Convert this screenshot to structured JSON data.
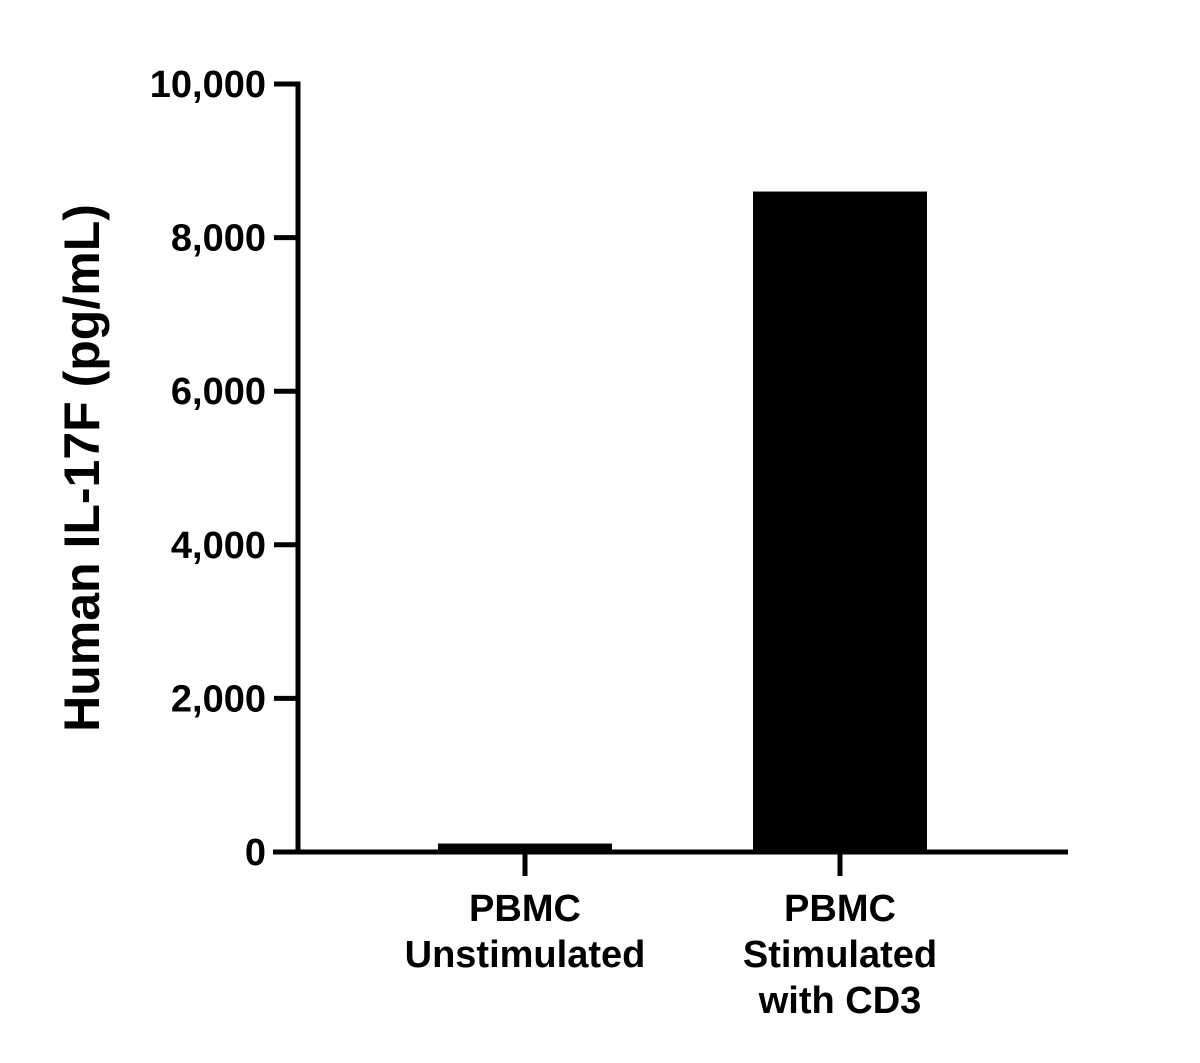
{
  "chart_data": {
    "type": "bar",
    "title": "",
    "xlabel": "",
    "ylabel": "Human IL-17F (pg/mL)",
    "categories": [
      [
        "PBMC",
        "Unstimulated"
      ],
      [
        "PBMC",
        "Stimulated",
        "with CD3"
      ]
    ],
    "values": [
      110,
      8600
    ],
    "ylim": [
      0,
      10000
    ],
    "yticks": [
      0,
      2000,
      4000,
      6000,
      8000,
      10000
    ],
    "ytick_labels": [
      "0",
      "2,000",
      "4,000",
      "6,000",
      "8,000",
      "10,000"
    ],
    "grid": false,
    "legend": "none",
    "bar_color": "#000000"
  }
}
